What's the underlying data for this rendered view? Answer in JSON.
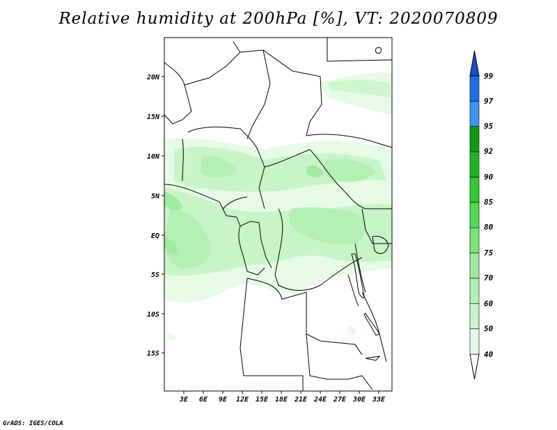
{
  "title": "Relative humidity at 200hPa [%], VT: 2020070809",
  "credit": "GrADS: IGES/COLA",
  "map": {
    "lat_labels": [
      "20N",
      "15N",
      "10N",
      "5N",
      "EQ",
      "5S",
      "10S",
      "15S"
    ],
    "lon_labels": [
      "3E",
      "6E",
      "9E",
      "12E",
      "15E",
      "18E",
      "21E",
      "24E",
      "27E",
      "30E",
      "33E"
    ]
  },
  "colorbar": {
    "levels": [
      "99",
      "97",
      "95",
      "92",
      "90",
      "85",
      "80",
      "75",
      "70",
      "60",
      "50",
      "40"
    ],
    "colors": [
      "#ffffff",
      "#e6fae6",
      "#c8f5c8",
      "#b4f0b4",
      "#a0eba0",
      "#78e678",
      "#50dc50",
      "#32c832",
      "#1eb41e",
      "#0f9b0f",
      "#3c96f0",
      "#1e6ee1",
      "#1450c8"
    ]
  }
}
